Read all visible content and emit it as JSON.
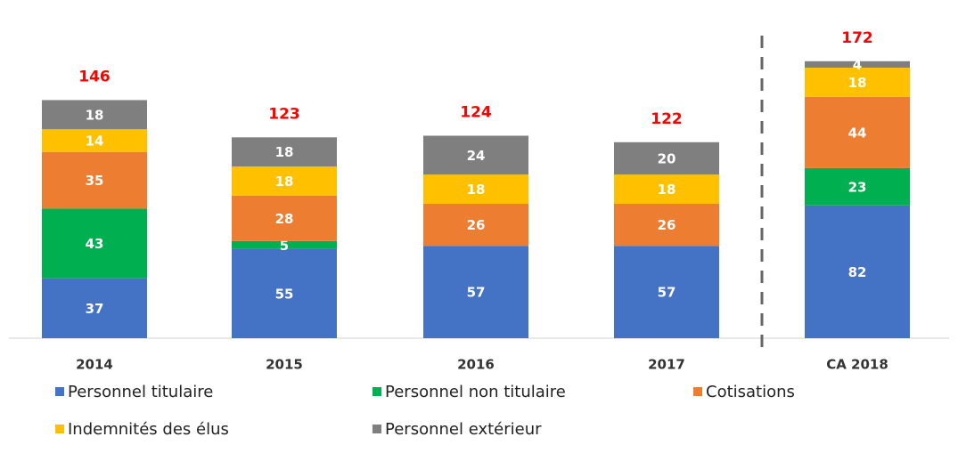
{
  "chart_data": {
    "type": "stacked_bar",
    "categories": [
      "2014",
      "2015",
      "2016",
      "2017",
      "CA 2018"
    ],
    "series": [
      {
        "name": "Personnel titulaire",
        "color": "#4472c4",
        "values": [
          37,
          55,
          57,
          57,
          82
        ]
      },
      {
        "name": "Personnel non titulaire",
        "color": "#00b050",
        "values": [
          43,
          5,
          null,
          null,
          23
        ]
      },
      {
        "name": "Cotisations",
        "color": "#ed7d31",
        "values": [
          35,
          28,
          26,
          26,
          44
        ]
      },
      {
        "name": "Indemnités des élus",
        "color": "#ffc000",
        "values": [
          14,
          18,
          18,
          18,
          18
        ]
      },
      {
        "name": "Personnel extérieur",
        "color": "#7f7f7f",
        "values": [
          18,
          18,
          24,
          20,
          4
        ]
      }
    ],
    "totals": [
      146,
      123,
      124,
      122,
      172
    ],
    "totals_color": "#ff0000"
  }
}
